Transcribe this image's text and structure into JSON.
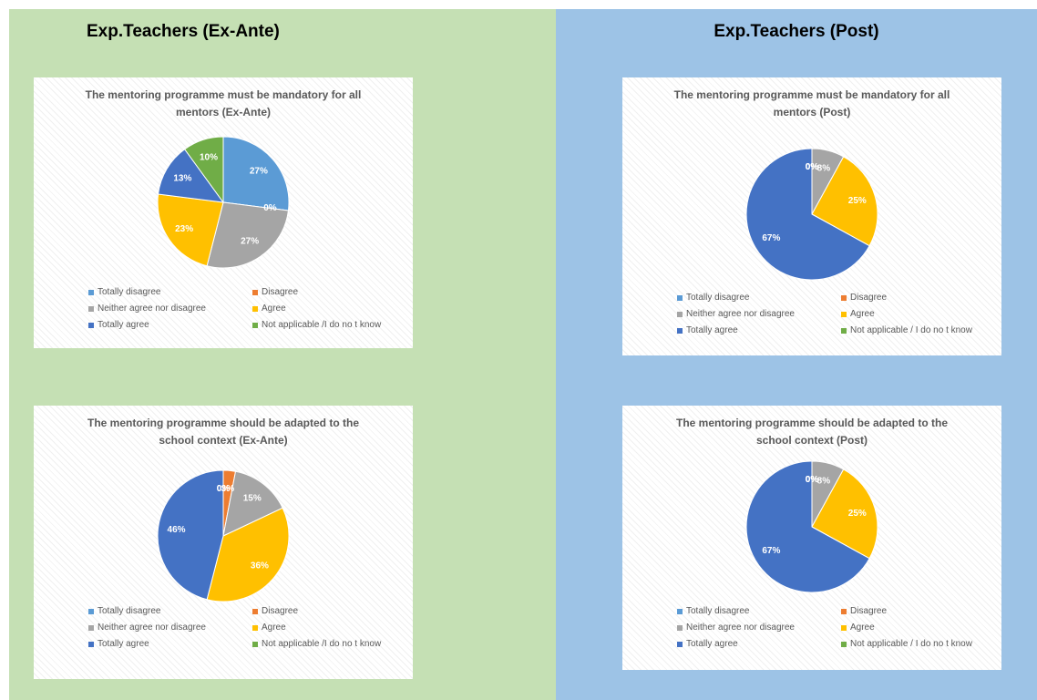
{
  "panels": [
    {
      "title": "Exp.Teachers (Ex-Ante)"
    },
    {
      "title": "Exp.Teachers (Post)"
    }
  ],
  "chart_data": [
    {
      "type": "pie",
      "title": "The mentoring programme must be mandatory for all mentors  (Ex-Ante)",
      "categories": [
        "Totally disagree",
        "Disagree",
        "Neither agree nor disagree",
        "Agree",
        "Totally agree",
        "Not applicable /I do no t know"
      ],
      "values": [
        27,
        0,
        27,
        23,
        13,
        10
      ],
      "value_labels": [
        "27%",
        "0%",
        "27%",
        "23%",
        "13%",
        "10%"
      ],
      "colors": [
        "#5b9bd5",
        "#ed7d31",
        "#a5a5a5",
        "#ffc000",
        "#4472c4",
        "#70ad47"
      ]
    },
    {
      "type": "pie",
      "title": "The mentoring programme must be mandatory for all mentors (Post)",
      "categories": [
        "Totally disagree",
        "Disagree",
        "Neither agree nor disagree",
        "Agree",
        "Totally agree",
        "Not applicable / I do no t know"
      ],
      "values": [
        0,
        0,
        8,
        25,
        67,
        0
      ],
      "value_labels": [
        "0%",
        "0%",
        "8%",
        "25%",
        "67%",
        "0%"
      ],
      "colors": [
        "#5b9bd5",
        "#ed7d31",
        "#a5a5a5",
        "#ffc000",
        "#4472c4",
        "#70ad47"
      ]
    },
    {
      "type": "pie",
      "title": "The mentoring programme should be adapted to the school context  (Ex-Ante)",
      "categories": [
        "Totally disagree",
        "Disagree",
        "Neither agree nor disagree",
        "Agree",
        "Totally agree",
        "Not applicable /I do no t know"
      ],
      "values": [
        0,
        3,
        15,
        36,
        46,
        0
      ],
      "value_labels": [
        "0%",
        "3%",
        "15%",
        "36%",
        "46%",
        "0%"
      ],
      "colors": [
        "#5b9bd5",
        "#ed7d31",
        "#a5a5a5",
        "#ffc000",
        "#4472c4",
        "#70ad47"
      ]
    },
    {
      "type": "pie",
      "title": "The mentoring programme should be adapted to the school context (Post)",
      "categories": [
        "Totally disagree",
        "Disagree",
        "Neither agree nor disagree",
        "Agree",
        "Totally agree",
        "Not applicable / I do no t know"
      ],
      "values": [
        0,
        0,
        8,
        25,
        67,
        0
      ],
      "value_labels": [
        "0%",
        "0%",
        "8%",
        "25%",
        "67%",
        "0%"
      ],
      "colors": [
        "#5b9bd5",
        "#ed7d31",
        "#a5a5a5",
        "#ffc000",
        "#4472c4",
        "#70ad47"
      ]
    }
  ]
}
